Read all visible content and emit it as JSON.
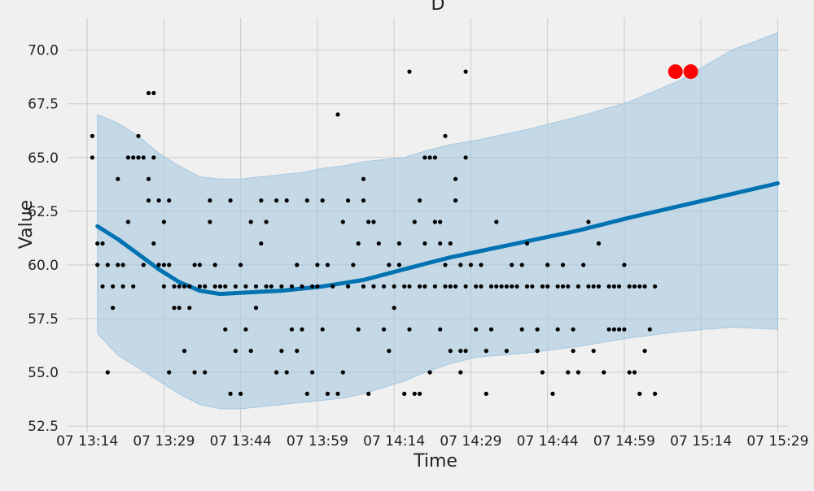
{
  "chart_data": {
    "type": "scatter",
    "title": "D",
    "xlabel": "Time",
    "ylabel": "Value",
    "xlim": [
      "13:10",
      "15:31"
    ],
    "ylim": [
      52.2,
      71.5
    ],
    "grid": true,
    "x_ticks": [
      {
        "t": "13:14",
        "label": "07 13:14"
      },
      {
        "t": "13:29",
        "label": "07 13:29"
      },
      {
        "t": "13:44",
        "label": "07 13:44"
      },
      {
        "t": "13:59",
        "label": "07 13:59"
      },
      {
        "t": "14:14",
        "label": "07 14:14"
      },
      {
        "t": "14:29",
        "label": "07 14:29"
      },
      {
        "t": "14:44",
        "label": "07 14:44"
      },
      {
        "t": "14:59",
        "label": "07 14:59"
      },
      {
        "t": "15:14",
        "label": "07 15:14"
      },
      {
        "t": "15:29",
        "label": "07 15:29"
      }
    ],
    "y_ticks": [
      52.5,
      55.0,
      57.5,
      60.0,
      62.5,
      65.0,
      67.5,
      70.0
    ],
    "y_tick_labels": [
      "52.5",
      "55.0",
      "57.5",
      "60.0",
      "62.5",
      "65.0",
      "67.5",
      "70.0"
    ],
    "forecast": {
      "color": "#0072b2",
      "band_color": "#a6c8e0",
      "points": [
        {
          "t": "13:16",
          "yhat": 61.8,
          "lo": 56.8,
          "hi": 67.0
        },
        {
          "t": "13:20",
          "yhat": 61.2,
          "lo": 55.8,
          "hi": 66.6
        },
        {
          "t": "13:24",
          "yhat": 60.5,
          "lo": 55.2,
          "hi": 66.0
        },
        {
          "t": "13:28",
          "yhat": 59.8,
          "lo": 54.6,
          "hi": 65.2
        },
        {
          "t": "13:32",
          "yhat": 59.2,
          "lo": 54.0,
          "hi": 64.6
        },
        {
          "t": "13:36",
          "yhat": 58.8,
          "lo": 53.5,
          "hi": 64.1
        },
        {
          "t": "13:40",
          "yhat": 58.65,
          "lo": 53.3,
          "hi": 64.0
        },
        {
          "t": "13:44",
          "yhat": 58.7,
          "lo": 53.3,
          "hi": 64.0
        },
        {
          "t": "13:48",
          "yhat": 58.75,
          "lo": 53.4,
          "hi": 64.1
        },
        {
          "t": "13:52",
          "yhat": 58.8,
          "lo": 53.5,
          "hi": 64.2
        },
        {
          "t": "13:56",
          "yhat": 58.9,
          "lo": 53.6,
          "hi": 64.3
        },
        {
          "t": "14:00",
          "yhat": 59.0,
          "lo": 53.7,
          "hi": 64.5
        },
        {
          "t": "14:04",
          "yhat": 59.15,
          "lo": 53.8,
          "hi": 64.6
        },
        {
          "t": "14:08",
          "yhat": 59.3,
          "lo": 54.0,
          "hi": 64.8
        },
        {
          "t": "14:12",
          "yhat": 59.55,
          "lo": 54.3,
          "hi": 64.9
        },
        {
          "t": "14:16",
          "yhat": 59.8,
          "lo": 54.6,
          "hi": 65.0
        },
        {
          "t": "14:20",
          "yhat": 60.05,
          "lo": 55.0,
          "hi": 65.3
        },
        {
          "t": "14:25",
          "yhat": 60.35,
          "lo": 55.4,
          "hi": 65.6
        },
        {
          "t": "14:30",
          "yhat": 60.6,
          "lo": 55.7,
          "hi": 65.8
        },
        {
          "t": "14:40",
          "yhat": 61.1,
          "lo": 55.9,
          "hi": 66.3
        },
        {
          "t": "14:50",
          "yhat": 61.6,
          "lo": 56.2,
          "hi": 66.9
        },
        {
          "t": "15:00",
          "yhat": 62.2,
          "lo": 56.6,
          "hi": 67.6
        },
        {
          "t": "15:10",
          "yhat": 62.75,
          "lo": 56.9,
          "hi": 68.6
        },
        {
          "t": "15:20",
          "yhat": 63.3,
          "lo": 57.1,
          "hi": 70.0
        },
        {
          "t": "15:29",
          "yhat": 63.8,
          "lo": 57.0,
          "hi": 70.8
        }
      ]
    },
    "observed": {
      "color": "#000000",
      "points": [
        [
          "13:15",
          66
        ],
        [
          "13:15",
          65
        ],
        [
          "13:16",
          61
        ],
        [
          "13:16",
          60
        ],
        [
          "13:17",
          59
        ],
        [
          "13:17",
          61
        ],
        [
          "13:18",
          55
        ],
        [
          "13:18",
          60
        ],
        [
          "13:19",
          58
        ],
        [
          "13:19",
          59
        ],
        [
          "13:20",
          64
        ],
        [
          "13:20",
          60
        ],
        [
          "13:21",
          59
        ],
        [
          "13:21",
          60
        ],
        [
          "13:22",
          62
        ],
        [
          "13:22",
          65
        ],
        [
          "13:23",
          59
        ],
        [
          "13:23",
          65
        ],
        [
          "13:24",
          66
        ],
        [
          "13:24",
          65
        ],
        [
          "13:25",
          60
        ],
        [
          "13:25",
          65
        ],
        [
          "13:26",
          63
        ],
        [
          "13:26",
          68
        ],
        [
          "13:26",
          64
        ],
        [
          "13:27",
          68
        ],
        [
          "13:27",
          65
        ],
        [
          "13:27",
          61
        ],
        [
          "13:28",
          60
        ],
        [
          "13:28",
          63
        ],
        [
          "13:29",
          59
        ],
        [
          "13:29",
          62
        ],
        [
          "13:29",
          60
        ],
        [
          "13:30",
          55
        ],
        [
          "13:30",
          63
        ],
        [
          "13:30",
          60
        ],
        [
          "13:31",
          58
        ],
        [
          "13:31",
          59
        ],
        [
          "13:32",
          59
        ],
        [
          "13:32",
          58
        ],
        [
          "13:33",
          59
        ],
        [
          "13:33",
          56
        ],
        [
          "13:34",
          58
        ],
        [
          "13:34",
          59
        ],
        [
          "13:35",
          60
        ],
        [
          "13:35",
          55
        ],
        [
          "13:36",
          60
        ],
        [
          "13:36",
          59
        ],
        [
          "13:37",
          55
        ],
        [
          "13:37",
          59
        ],
        [
          "13:38",
          63
        ],
        [
          "13:38",
          62
        ],
        [
          "13:39",
          59
        ],
        [
          "13:39",
          60
        ],
        [
          "13:40",
          59
        ],
        [
          "13:41",
          57
        ],
        [
          "13:41",
          59
        ],
        [
          "13:42",
          54
        ],
        [
          "13:42",
          63
        ],
        [
          "13:43",
          59
        ],
        [
          "13:43",
          56
        ],
        [
          "13:44",
          60
        ],
        [
          "13:44",
          54
        ],
        [
          "13:45",
          59
        ],
        [
          "13:45",
          57
        ],
        [
          "13:46",
          62
        ],
        [
          "13:46",
          56
        ],
        [
          "13:47",
          59
        ],
        [
          "13:47",
          58
        ],
        [
          "13:48",
          63
        ],
        [
          "13:48",
          61
        ],
        [
          "13:49",
          62
        ],
        [
          "13:49",
          59
        ],
        [
          "13:50",
          59
        ],
        [
          "13:51",
          63
        ],
        [
          "13:51",
          55
        ],
        [
          "13:52",
          56
        ],
        [
          "13:52",
          59
        ],
        [
          "13:53",
          63
        ],
        [
          "13:53",
          55
        ],
        [
          "13:54",
          57
        ],
        [
          "13:54",
          59
        ],
        [
          "13:55",
          56
        ],
        [
          "13:55",
          60
        ],
        [
          "13:56",
          57
        ],
        [
          "13:56",
          59
        ],
        [
          "13:57",
          63
        ],
        [
          "13:57",
          54
        ],
        [
          "13:58",
          59
        ],
        [
          "13:58",
          55
        ],
        [
          "13:59",
          59
        ],
        [
          "13:59",
          60
        ],
        [
          "14:00",
          63
        ],
        [
          "14:00",
          57
        ],
        [
          "14:01",
          60
        ],
        [
          "14:01",
          54
        ],
        [
          "14:02",
          59
        ],
        [
          "14:03",
          54
        ],
        [
          "14:04",
          62
        ],
        [
          "14:04",
          55
        ],
        [
          "14:05",
          63
        ],
        [
          "14:05",
          59
        ],
        [
          "14:06",
          60
        ],
        [
          "14:07",
          61
        ],
        [
          "14:07",
          57
        ],
        [
          "14:08",
          63
        ],
        [
          "14:08",
          59
        ],
        [
          "14:09",
          62
        ],
        [
          "14:09",
          54
        ],
        [
          "14:10",
          62
        ],
        [
          "14:10",
          59
        ],
        [
          "14:11",
          61
        ],
        [
          "14:12",
          59
        ],
        [
          "14:12",
          57
        ],
        [
          "14:13",
          60
        ],
        [
          "14:13",
          56
        ],
        [
          "14:14",
          59
        ],
        [
          "14:14",
          58
        ],
        [
          "14:15",
          60
        ],
        [
          "14:16",
          59
        ],
        [
          "14:16",
          54
        ],
        [
          "14:17",
          57
        ],
        [
          "14:17",
          59
        ],
        [
          "14:18",
          54
        ],
        [
          "14:18",
          62
        ],
        [
          "14:19",
          59
        ],
        [
          "14:19",
          54
        ],
        [
          "14:20",
          61
        ],
        [
          "14:20",
          59
        ],
        [
          "14:21",
          55
        ],
        [
          "14:22",
          62
        ],
        [
          "14:22",
          59
        ],
        [
          "14:23",
          61
        ],
        [
          "14:23",
          57
        ],
        [
          "14:24",
          60
        ],
        [
          "14:24",
          59
        ],
        [
          "14:25",
          59
        ],
        [
          "14:25",
          56
        ],
        [
          "14:26",
          63
        ],
        [
          "14:26",
          59
        ],
        [
          "14:27",
          55
        ],
        [
          "14:28",
          59
        ],
        [
          "14:28",
          56
        ],
        [
          "14:29",
          60
        ],
        [
          "14:30",
          59
        ],
        [
          "14:30",
          57
        ],
        [
          "14:31",
          60
        ],
        [
          "14:31",
          59
        ],
        [
          "14:32",
          54
        ],
        [
          "14:32",
          56
        ],
        [
          "14:33",
          59
        ],
        [
          "14:33",
          57
        ],
        [
          "14:34",
          59
        ],
        [
          "14:34",
          62
        ],
        [
          "14:35",
          59
        ],
        [
          "14:36",
          59
        ],
        [
          "14:36",
          56
        ],
        [
          "14:37",
          59
        ],
        [
          "14:37",
          60
        ],
        [
          "14:38",
          59
        ],
        [
          "14:39",
          57
        ],
        [
          "14:39",
          60
        ],
        [
          "14:40",
          59
        ],
        [
          "14:40",
          61
        ],
        [
          "14:41",
          59
        ],
        [
          "14:42",
          56
        ],
        [
          "14:42",
          57
        ],
        [
          "14:43",
          59
        ],
        [
          "14:43",
          55
        ],
        [
          "14:44",
          60
        ],
        [
          "14:44",
          59
        ],
        [
          "14:45",
          54
        ],
        [
          "14:46",
          59
        ],
        [
          "14:46",
          57
        ],
        [
          "14:47",
          59
        ],
        [
          "14:47",
          60
        ],
        [
          "14:48",
          55
        ],
        [
          "14:48",
          59
        ],
        [
          "14:49",
          56
        ],
        [
          "14:49",
          57
        ],
        [
          "14:50",
          59
        ],
        [
          "14:50",
          55
        ],
        [
          "14:51",
          60
        ],
        [
          "14:52",
          59
        ],
        [
          "14:52",
          62
        ],
        [
          "14:53",
          59
        ],
        [
          "14:53",
          56
        ],
        [
          "14:54",
          61
        ],
        [
          "14:54",
          59
        ],
        [
          "14:55",
          55
        ],
        [
          "14:56",
          59
        ],
        [
          "14:56",
          57
        ],
        [
          "14:57",
          57
        ],
        [
          "14:57",
          59
        ],
        [
          "14:58",
          59
        ],
        [
          "14:58",
          57
        ],
        [
          "14:59",
          60
        ],
        [
          "14:59",
          57
        ],
        [
          "15:00",
          59
        ],
        [
          "15:00",
          55
        ],
        [
          "15:01",
          59
        ],
        [
          "15:01",
          55
        ],
        [
          "15:02",
          54
        ],
        [
          "15:02",
          59
        ],
        [
          "15:03",
          56
        ],
        [
          "15:03",
          59
        ],
        [
          "15:04",
          57
        ],
        [
          "15:05",
          54
        ],
        [
          "15:05",
          59
        ]
      ],
      "overlay_points": [
        [
          "14:03",
          67
        ],
        [
          "14:08",
          64
        ],
        [
          "14:15",
          61
        ],
        [
          "14:17",
          69
        ],
        [
          "14:19",
          63
        ],
        [
          "14:20",
          65
        ],
        [
          "14:21",
          65
        ],
        [
          "14:22",
          65
        ],
        [
          "14:23",
          62
        ],
        [
          "14:24",
          66
        ],
        [
          "14:25",
          61
        ],
        [
          "14:26",
          64
        ],
        [
          "14:27",
          60
        ],
        [
          "14:27",
          56
        ],
        [
          "14:28",
          69
        ],
        [
          "14:28",
          65
        ]
      ]
    },
    "anomalies": {
      "color": "#ff0000",
      "points": [
        [
          "15:09",
          69
        ],
        [
          "15:12",
          69
        ]
      ]
    }
  }
}
